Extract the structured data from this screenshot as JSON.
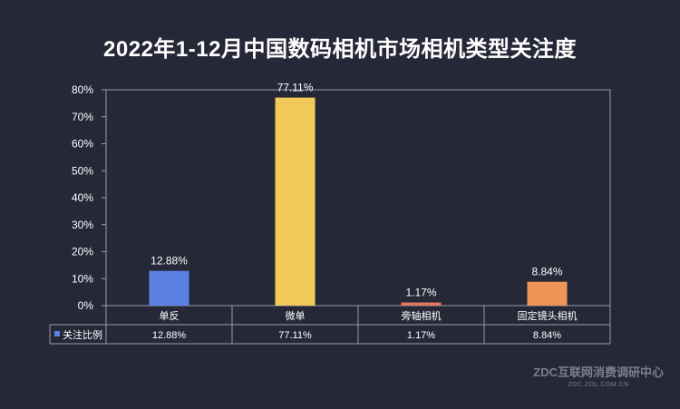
{
  "chart_data": {
    "type": "bar",
    "title": "2022年1-12月中国数码相机市场相机类型关注度",
    "categories": [
      "单反",
      "微单",
      "旁轴相机",
      "固定镜头相机"
    ],
    "series": [
      {
        "name": "关注比例",
        "values": [
          12.88,
          77.11,
          1.17,
          8.84
        ],
        "value_labels": [
          "12.88%",
          "77.11%",
          "1.17%",
          "8.84%"
        ],
        "colors": [
          "#5b82e3",
          "#f2ca5a",
          "#e1775c",
          "#ee9555"
        ],
        "legend_color": "#5b82e3"
      }
    ],
    "ylim": [
      0,
      80
    ],
    "yticks": [
      0,
      10,
      20,
      30,
      40,
      50,
      60,
      70,
      80
    ],
    "ytick_labels": [
      "0%",
      "10%",
      "20%",
      "30%",
      "40%",
      "50%",
      "60%",
      "70%",
      "80%"
    ],
    "xlabel": "",
    "ylabel": "",
    "data_table": true,
    "grid": false
  },
  "watermark": {
    "text": "ZDC互联网消费调研中心",
    "url": "ZDC.ZOL.COM.CN"
  }
}
